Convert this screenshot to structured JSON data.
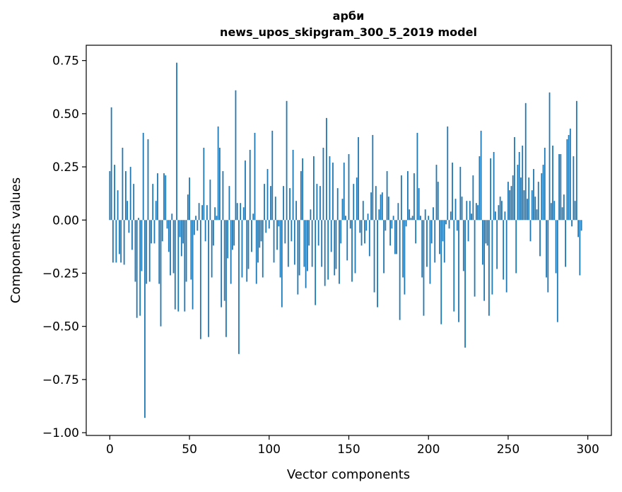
{
  "chart_data": {
    "type": "bar",
    "title": "арби",
    "subtitle": "news_upos_skipgram_300_5_2019 model",
    "xlabel": "Vector components",
    "ylabel": "Components values",
    "xlim": [
      -14.8,
      314.8
    ],
    "ylim": [
      -1.013,
      0.822
    ],
    "xticks": [
      0,
      50,
      100,
      150,
      200,
      250,
      300
    ],
    "xtick_labels": [
      "0",
      "50",
      "100",
      "150",
      "200",
      "250",
      "300"
    ],
    "yticks": [
      0.75,
      0.5,
      0.25,
      0.0,
      -0.25,
      -0.5,
      -0.75,
      -1.0
    ],
    "ytick_labels": [
      "0.75",
      "0.50",
      "0.25",
      "0.00",
      "−0.25",
      "−0.50",
      "−0.75",
      "−1.00"
    ],
    "bar_color": "#1f77b4",
    "grid": false,
    "legend": "none",
    "x": "0..299",
    "values": [
      0.23,
      0.53,
      -0.2,
      0.26,
      -0.2,
      0.14,
      -0.16,
      -0.2,
      0.34,
      -0.21,
      0.23,
      0.09,
      -0.06,
      0.25,
      -0.14,
      0.17,
      -0.29,
      -0.46,
      0.01,
      -0.45,
      -0.24,
      0.41,
      -0.93,
      -0.3,
      0.38,
      -0.29,
      -0.11,
      0.17,
      -0.11,
      0.09,
      0.22,
      -0.3,
      -0.5,
      -0.1,
      0.22,
      0.21,
      -0.04,
      -0.15,
      -0.26,
      0.03,
      -0.25,
      -0.42,
      0.74,
      -0.43,
      -0.08,
      -0.17,
      -0.11,
      -0.43,
      -0.29,
      0.12,
      0.2,
      -0.28,
      -0.42,
      -0.07,
      0.02,
      -0.05,
      0.08,
      -0.56,
      0.07,
      0.34,
      -0.1,
      0.07,
      -0.55,
      0.19,
      -0.27,
      -0.12,
      0.06,
      0.02,
      0.44,
      0.34,
      -0.41,
      0.23,
      -0.38,
      -0.55,
      -0.18,
      0.16,
      -0.3,
      -0.14,
      -0.12,
      0.61,
      0.08,
      -0.63,
      0.08,
      -0.27,
      0.06,
      0.28,
      -0.29,
      -0.23,
      0.33,
      -0.15,
      0.03,
      0.41,
      -0.3,
      -0.2,
      -0.13,
      -0.1,
      -0.27,
      0.17,
      -0.06,
      0.24,
      -0.04,
      0.16,
      0.42,
      -0.2,
      0.11,
      -0.14,
      -0.03,
      -0.27,
      -0.41,
      0.16,
      -0.11,
      0.56,
      -0.22,
      0.15,
      -0.1,
      0.33,
      -0.21,
      0.09,
      -0.35,
      -0.26,
      0.23,
      0.29,
      -0.22,
      -0.32,
      -0.24,
      -0.12,
      0.05,
      -0.22,
      0.3,
      -0.4,
      0.17,
      -0.12,
      0.16,
      -0.22,
      0.34,
      -0.31,
      0.48,
      -0.28,
      0.3,
      -0.15,
      0.27,
      -0.26,
      -0.23,
      0.15,
      -0.3,
      -0.11,
      0.1,
      0.27,
      0.02,
      -0.19,
      0.31,
      -0.04,
      -0.29,
      0.17,
      -0.25,
      0.2,
      0.39,
      -0.06,
      -0.12,
      0.09,
      -0.11,
      -0.05,
      0.03,
      -0.17,
      0.13,
      0.4,
      -0.34,
      0.16,
      -0.41,
      0.05,
      0.12,
      0.13,
      -0.25,
      -0.05,
      0.23,
      0.11,
      -0.12,
      -0.04,
      0.02,
      -0.16,
      -0.16,
      0.08,
      -0.47,
      0.21,
      -0.27,
      -0.35,
      -0.03,
      0.23,
      0.05,
      0.01,
      0.02,
      0.22,
      -0.11,
      0.41,
      0.15,
      0.02,
      -0.27,
      -0.45,
      0.05,
      -0.22,
      0.02,
      -0.3,
      -0.11,
      0.06,
      -0.2,
      0.26,
      0.18,
      -0.16,
      -0.49,
      -0.1,
      -0.2,
      -0.02,
      0.44,
      -0.04,
      0.04,
      0.27,
      -0.43,
      0.1,
      -0.05,
      -0.48,
      0.25,
      0.11,
      -0.24,
      -0.6,
      0.09,
      -0.1,
      0.09,
      0.03,
      0.21,
      -0.36,
      0.08,
      0.07,
      0.3,
      0.42,
      -0.21,
      -0.38,
      -0.11,
      -0.12,
      -0.45,
      0.29,
      -0.35,
      0.32,
      0.04,
      -0.23,
      0.07,
      0.11,
      0.09,
      -0.28,
      0.04,
      -0.34,
      0.18,
      0.14,
      0.16,
      0.21,
      0.39,
      -0.25,
      0.26,
      0.32,
      0.2,
      0.35,
      0.14,
      0.55,
      0.1,
      0.2,
      -0.1,
      0.14,
      0.24,
      0.11,
      0.05,
      0.18,
      -0.17,
      0.22,
      0.26,
      0.34,
      -0.27,
      -0.34,
      0.6,
      0.08,
      0.35,
      0.09,
      -0.25,
      -0.48,
      0.31,
      0.31,
      0.06,
      0.12,
      -0.22,
      0.38,
      0.4,
      0.43,
      -0.03,
      0.3,
      0.09,
      0.56,
      -0.08,
      -0.26,
      -0.05
    ]
  }
}
